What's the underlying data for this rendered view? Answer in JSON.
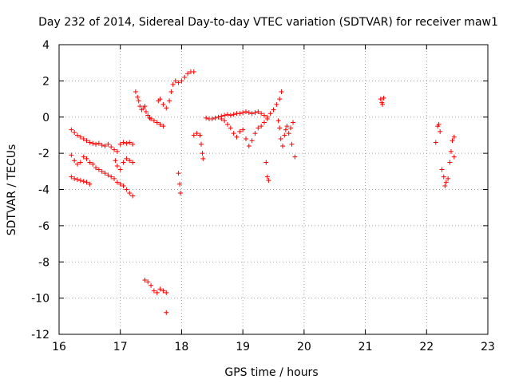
{
  "chart_data": {
    "type": "scatter",
    "title": "Day 232 of 2014, Sidereal Day-to-day VTEC variation (SDTVAR) for receiver maw1",
    "xlabel": "GPS time / hours",
    "ylabel": "SDTVAR / TECUs",
    "xlim": [
      16,
      23
    ],
    "ylim": [
      -12,
      4
    ],
    "xticks": [
      16,
      17,
      18,
      19,
      20,
      21,
      22,
      23
    ],
    "yticks": [
      -12,
      -10,
      -8,
      -6,
      -4,
      -2,
      0,
      2,
      4
    ],
    "grid": true,
    "marker": "plus",
    "color": "#ff0000",
    "series": [
      {
        "name": "SDTVAR",
        "points": [
          [
            16.2,
            -0.7
          ],
          [
            16.25,
            -0.85
          ],
          [
            16.3,
            -1.0
          ],
          [
            16.35,
            -1.1
          ],
          [
            16.4,
            -1.2
          ],
          [
            16.45,
            -1.3
          ],
          [
            16.5,
            -1.4
          ],
          [
            16.55,
            -1.45
          ],
          [
            16.6,
            -1.5
          ],
          [
            16.65,
            -1.45
          ],
          [
            16.7,
            -1.55
          ],
          [
            16.75,
            -1.6
          ],
          [
            16.8,
            -1.5
          ],
          [
            16.85,
            -1.65
          ],
          [
            16.9,
            -1.8
          ],
          [
            16.95,
            -1.9
          ],
          [
            17.0,
            -1.5
          ],
          [
            17.05,
            -1.4
          ],
          [
            17.1,
            -1.45
          ],
          [
            17.15,
            -1.4
          ],
          [
            17.2,
            -1.5
          ],
          [
            16.2,
            -2.1
          ],
          [
            16.25,
            -2.4
          ],
          [
            16.3,
            -2.6
          ],
          [
            16.35,
            -2.5
          ],
          [
            16.4,
            -2.2
          ],
          [
            16.45,
            -2.3
          ],
          [
            16.5,
            -2.5
          ],
          [
            16.55,
            -2.6
          ],
          [
            16.6,
            -2.8
          ],
          [
            16.65,
            -2.9
          ],
          [
            16.7,
            -3.0
          ],
          [
            16.75,
            -3.1
          ],
          [
            16.8,
            -3.2
          ],
          [
            16.85,
            -3.3
          ],
          [
            16.9,
            -3.4
          ],
          [
            16.95,
            -3.6
          ],
          [
            17.0,
            -3.7
          ],
          [
            17.05,
            -3.8
          ],
          [
            17.1,
            -4.0
          ],
          [
            17.15,
            -4.2
          ],
          [
            17.2,
            -4.35
          ],
          [
            16.2,
            -3.3
          ],
          [
            16.25,
            -3.4
          ],
          [
            16.3,
            -3.45
          ],
          [
            16.35,
            -3.5
          ],
          [
            16.4,
            -3.55
          ],
          [
            16.45,
            -3.6
          ],
          [
            16.5,
            -3.7
          ],
          [
            16.92,
            -2.4
          ],
          [
            16.95,
            -2.7
          ],
          [
            17.0,
            -2.9
          ],
          [
            17.05,
            -2.5
          ],
          [
            17.1,
            -2.3
          ],
          [
            17.15,
            -2.4
          ],
          [
            17.2,
            -2.5
          ],
          [
            17.25,
            1.4
          ],
          [
            17.28,
            1.1
          ],
          [
            17.3,
            0.9
          ],
          [
            17.32,
            0.6
          ],
          [
            17.35,
            0.4
          ],
          [
            17.38,
            0.5
          ],
          [
            17.4,
            0.6
          ],
          [
            17.42,
            0.3
          ],
          [
            17.45,
            0.1
          ],
          [
            17.48,
            -0.05
          ],
          [
            17.5,
            -0.1
          ],
          [
            17.55,
            -0.2
          ],
          [
            17.6,
            -0.3
          ],
          [
            17.65,
            -0.4
          ],
          [
            17.7,
            -0.5
          ],
          [
            17.62,
            0.9
          ],
          [
            17.65,
            1.0
          ],
          [
            17.7,
            0.7
          ],
          [
            17.75,
            0.5
          ],
          [
            17.8,
            0.9
          ],
          [
            17.83,
            1.4
          ],
          [
            17.86,
            1.8
          ],
          [
            17.9,
            2.0
          ],
          [
            17.95,
            1.9
          ],
          [
            18.0,
            2.0
          ],
          [
            18.05,
            2.2
          ],
          [
            18.1,
            2.4
          ],
          [
            18.15,
            2.5
          ],
          [
            18.2,
            2.5
          ],
          [
            17.4,
            -9.0
          ],
          [
            17.45,
            -9.1
          ],
          [
            17.5,
            -9.3
          ],
          [
            17.55,
            -9.6
          ],
          [
            17.6,
            -9.7
          ],
          [
            17.65,
            -9.5
          ],
          [
            17.7,
            -9.6
          ],
          [
            17.75,
            -9.7
          ],
          [
            17.75,
            -10.8
          ],
          [
            17.95,
            -3.1
          ],
          [
            17.97,
            -3.7
          ],
          [
            17.98,
            -4.2
          ],
          [
            18.2,
            -1.0
          ],
          [
            18.25,
            -0.9
          ],
          [
            18.3,
            -1.0
          ],
          [
            18.32,
            -1.5
          ],
          [
            18.34,
            -2.0
          ],
          [
            18.35,
            -2.3
          ],
          [
            18.4,
            -0.05
          ],
          [
            18.45,
            -0.1
          ],
          [
            18.5,
            -0.1
          ],
          [
            18.55,
            -0.05
          ],
          [
            18.6,
            0.0
          ],
          [
            18.65,
            -0.1
          ],
          [
            18.7,
            -0.2
          ],
          [
            18.75,
            -0.4
          ],
          [
            18.8,
            -0.6
          ],
          [
            18.85,
            -0.9
          ],
          [
            18.9,
            -1.1
          ],
          [
            18.95,
            -0.8
          ],
          [
            19.0,
            -0.7
          ],
          [
            19.05,
            -1.2
          ],
          [
            19.1,
            -1.6
          ],
          [
            19.15,
            -1.3
          ],
          [
            19.2,
            -0.9
          ],
          [
            19.25,
            -0.6
          ],
          [
            19.3,
            -0.5
          ],
          [
            19.35,
            -0.3
          ],
          [
            19.4,
            -0.1
          ],
          [
            18.65,
            0.05
          ],
          [
            18.7,
            0.1
          ],
          [
            18.75,
            0.15
          ],
          [
            18.8,
            0.1
          ],
          [
            18.85,
            0.15
          ],
          [
            18.9,
            0.2
          ],
          [
            18.95,
            0.2
          ],
          [
            19.0,
            0.25
          ],
          [
            19.05,
            0.3
          ],
          [
            19.1,
            0.25
          ],
          [
            19.15,
            0.2
          ],
          [
            19.2,
            0.25
          ],
          [
            19.25,
            0.3
          ],
          [
            19.3,
            0.2
          ],
          [
            19.35,
            0.1
          ],
          [
            19.4,
            0.0
          ],
          [
            19.38,
            -2.5
          ],
          [
            19.4,
            -3.3
          ],
          [
            19.42,
            -3.5
          ],
          [
            19.45,
            0.2
          ],
          [
            19.5,
            0.4
          ],
          [
            19.55,
            0.7
          ],
          [
            19.6,
            1.0
          ],
          [
            19.63,
            1.4
          ],
          [
            19.58,
            -0.2
          ],
          [
            19.6,
            -0.6
          ],
          [
            19.62,
            -1.2
          ],
          [
            19.65,
            -1.6
          ],
          [
            19.68,
            -1.0
          ],
          [
            19.7,
            -0.7
          ],
          [
            19.72,
            -0.5
          ],
          [
            19.75,
            -0.9
          ],
          [
            19.78,
            -0.6
          ],
          [
            19.8,
            -1.5
          ],
          [
            19.82,
            -0.3
          ],
          [
            19.85,
            -2.2
          ],
          [
            21.25,
            1.0
          ],
          [
            21.27,
            0.8
          ],
          [
            21.28,
            0.7
          ],
          [
            21.3,
            1.05
          ],
          [
            22.15,
            -1.4
          ],
          [
            22.18,
            -0.5
          ],
          [
            22.2,
            -0.4
          ],
          [
            22.22,
            -0.8
          ],
          [
            22.25,
            -2.9
          ],
          [
            22.28,
            -3.3
          ],
          [
            22.3,
            -3.8
          ],
          [
            22.32,
            -3.6
          ],
          [
            22.35,
            -3.4
          ],
          [
            22.38,
            -2.5
          ],
          [
            22.4,
            -1.9
          ],
          [
            22.42,
            -1.3
          ],
          [
            22.45,
            -1.1
          ],
          [
            22.45,
            -2.2
          ]
        ]
      }
    ]
  }
}
